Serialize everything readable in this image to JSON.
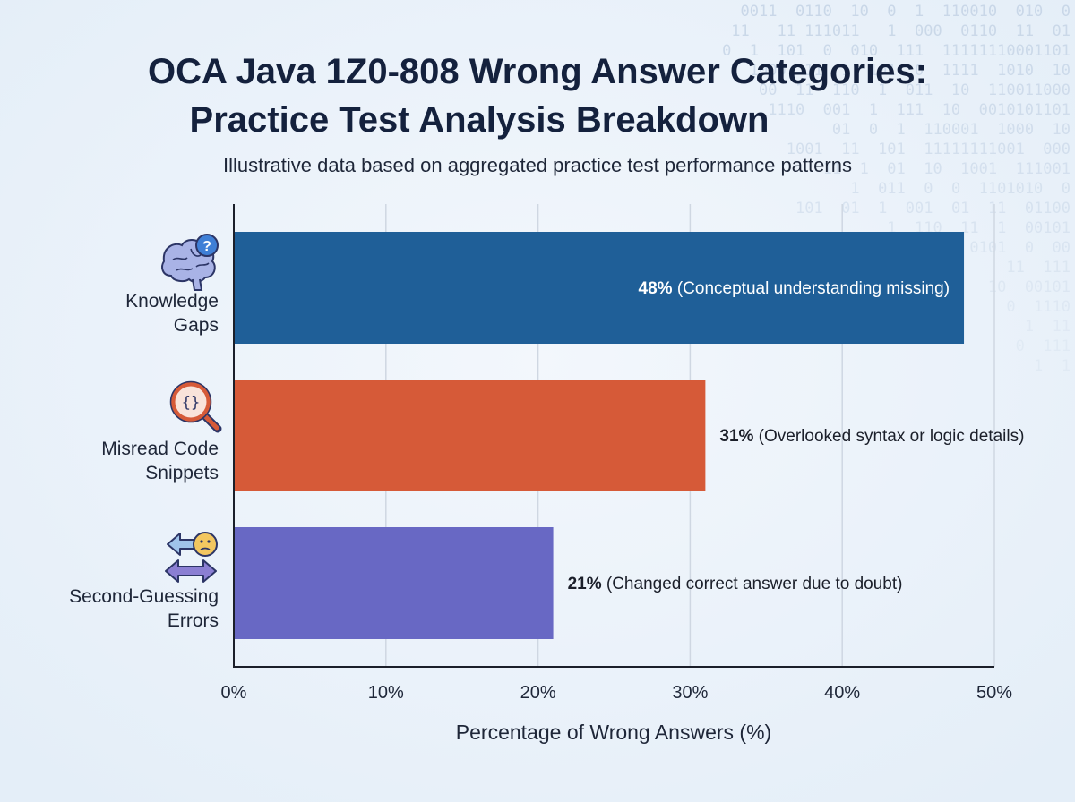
{
  "chart_data": {
    "type": "bar",
    "orientation": "horizontal",
    "title": "OCA Java 1Z0-808 Wrong Answer Categories: Practice Test Analysis Breakdown",
    "title_lines": [
      "OCA Java 1Z0-808 Wrong Answer Categories:",
      "Practice Test Analysis Breakdown"
    ],
    "subtitle": "Illustrative data based on aggregated practice test performance patterns",
    "xlabel": "Percentage of Wrong Answers (%)",
    "ylabel": "",
    "xlim": [
      0,
      50
    ],
    "x_ticks": [
      0,
      10,
      20,
      30,
      40,
      50
    ],
    "tick_suffix": "%",
    "grid": "vertical",
    "categories": [
      {
        "name": "Knowledge Gaps",
        "lines": [
          "Knowledge",
          "Gaps"
        ],
        "icon": "brain-question-icon",
        "value": 48,
        "color": "#1f5f98",
        "label_value": "48%",
        "label_note": " (Conceptual understanding missing)",
        "label_inside": true
      },
      {
        "name": "Misread Code Snippets",
        "lines": [
          "Misread Code",
          "Snippets"
        ],
        "icon": "magnifier-code-icon",
        "value": 31,
        "color": "#d65a38",
        "label_value": "31%",
        "label_note": " (Overlooked syntax or logic details)",
        "label_inside": false
      },
      {
        "name": "Second-Guessing Errors",
        "lines": [
          "Second-Guessing",
          "Errors"
        ],
        "icon": "arrows-doubt-icon",
        "value": 21,
        "color": "#6868c4",
        "label_value": "21%",
        "label_note": " (Changed correct answer due to doubt)",
        "label_inside": false
      }
    ]
  },
  "decoration": {
    "binary_rows": [
      "0011  0110  10  0  1  110010  010  0",
      "11   11 111011   1  000  0110  11  01",
      "0  1  101  0  010  111  11111110001101",
      "1000  11  1  101  0  1111  1010  10",
      "00  11  110  1  011  10  110011000",
      "1110  001  1  111  10  0010101101",
      "01  0  1  110001  1000  10",
      "1001  11  101  11111111001  000",
      "11  1  01  10  1001  111001",
      "1  011  0  0  1101010  0",
      "101  01  1  001  01  11  01100",
      "1  110  11  1  00101",
      "0101  0  00",
      "11  111",
      "10  00101",
      "0  1110",
      "1  11",
      "0  111",
      "1  1"
    ]
  }
}
